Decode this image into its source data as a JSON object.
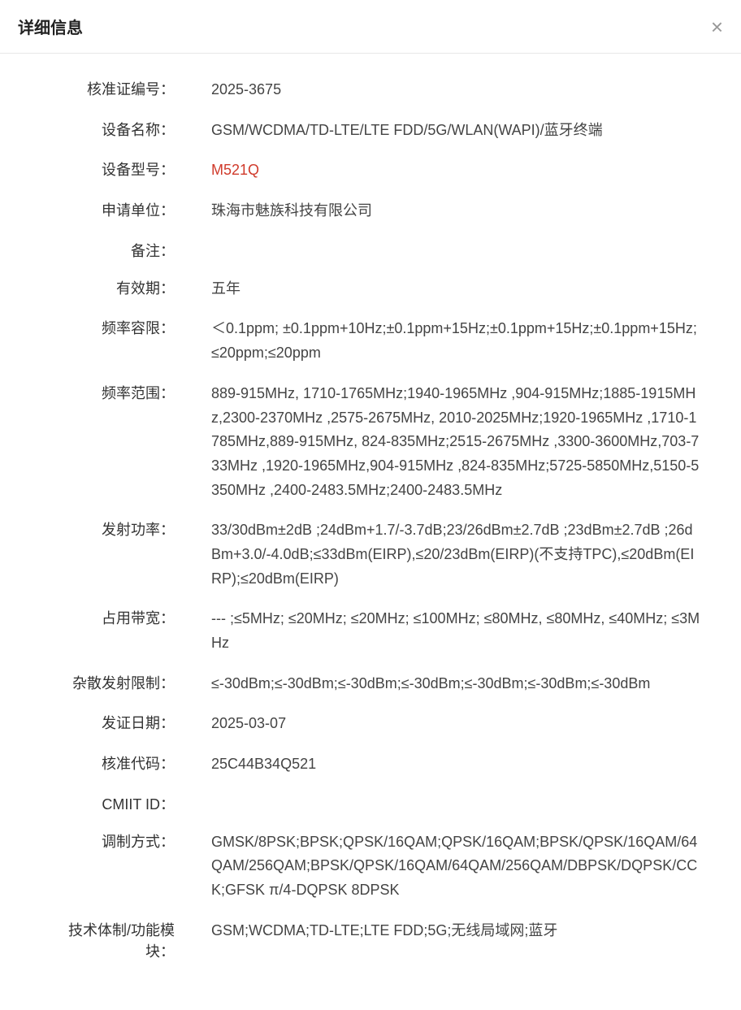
{
  "header": {
    "title": "详细信息"
  },
  "rows": [
    {
      "label": "核准证编号：",
      "value": "2025-3675",
      "highlight": false
    },
    {
      "label": "设备名称：",
      "value": "GSM/WCDMA/TD-LTE/LTE FDD/5G/WLAN(WAPI)/蓝牙终端",
      "highlight": false
    },
    {
      "label": "设备型号：",
      "value": "M521Q",
      "highlight": true
    },
    {
      "label": "申请单位：",
      "value": "珠海市魅族科技有限公司",
      "highlight": false
    },
    {
      "label": "备注：",
      "value": "",
      "highlight": false
    },
    {
      "label": "有效期：",
      "value": "五年",
      "highlight": false
    },
    {
      "label": "频率容限：",
      "value": "＜0.1ppm; ±0.1ppm+10Hz;±0.1ppm+15Hz;±0.1ppm+15Hz;±0.1ppm+15Hz;≤20ppm;≤20ppm",
      "highlight": false
    },
    {
      "label": "频率范围：",
      "value": "889-915MHz, 1710-1765MHz;1940-1965MHz ,904-915MHz;1885-1915MHz,2300-2370MHz ,2575-2675MHz, 2010-2025MHz;1920-1965MHz ,1710-1785MHz,889-915MHz, 824-835MHz;2515-2675MHz ,3300-3600MHz,703-733MHz ,1920-1965MHz,904-915MHz ,824-835MHz;5725-5850MHz,5150-5350MHz ,2400-2483.5MHz;2400-2483.5MHz",
      "highlight": false
    },
    {
      "label": "发射功率：",
      "value": "33/30dBm±2dB ;24dBm+1.7/-3.7dB;23/26dBm±2.7dB ;23dBm±2.7dB ;26dBm+3.0/-4.0dB;≤33dBm(EIRP),≤20/23dBm(EIRP)(不支持TPC),≤20dBm(EIRP);≤20dBm(EIRP)",
      "highlight": false
    },
    {
      "label": "占用带宽：",
      "value": "--- ;≤5MHz; ≤20MHz; ≤20MHz; ≤100MHz; ≤80MHz, ≤80MHz, ≤40MHz; ≤3MHz",
      "highlight": false
    },
    {
      "label": "杂散发射限制：",
      "value": "≤-30dBm;≤-30dBm;≤-30dBm;≤-30dBm;≤-30dBm;≤-30dBm;≤-30dBm",
      "highlight": false
    },
    {
      "label": "发证日期：",
      "value": "2025-03-07",
      "highlight": false
    },
    {
      "label": "核准代码：",
      "value": "25C44B34Q521",
      "highlight": false
    },
    {
      "label": "CMIIT ID：",
      "value": "",
      "highlight": false
    },
    {
      "label": "调制方式：",
      "value": "GMSK/8PSK;BPSK;QPSK/16QAM;QPSK/16QAM;BPSK/QPSK/16QAM/64QAM/256QAM;BPSK/QPSK/16QAM/64QAM/256QAM/DBPSK/DQPSK/CCK;GFSK π/4-DQPSK 8DPSK",
      "highlight": false
    },
    {
      "label": "技术体制/功能模块：",
      "value": "GSM;WCDMA;TD-LTE;LTE FDD;5G;无线局域网;蓝牙",
      "highlight": false
    }
  ]
}
